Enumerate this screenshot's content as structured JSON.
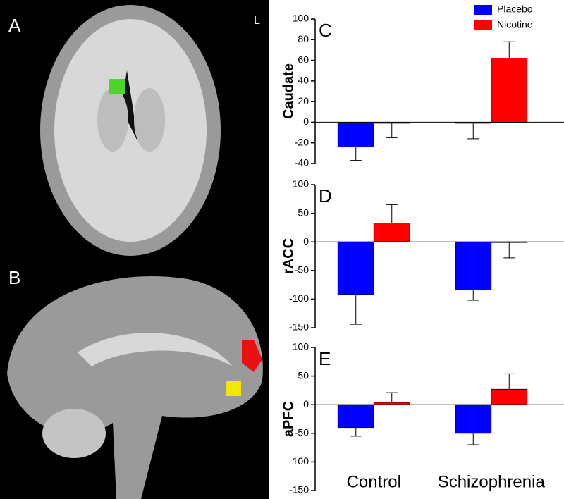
{
  "panel_labels": [
    "A",
    "B"
  ],
  "orientation_label": "L",
  "chart_data": [
    {
      "type": "bar",
      "panel": "C",
      "y_label": "Caudate",
      "ylim": [
        -40,
        100
      ],
      "yticks": [
        -40,
        -20,
        0,
        20,
        40,
        60,
        80,
        100
      ],
      "series": [
        {
          "name": "Placebo",
          "color": "#0000ff",
          "values": [
            -24,
            -1
          ],
          "errors": [
            13,
            15
          ]
        },
        {
          "name": "Nicotine",
          "color": "#ff0000",
          "values": [
            -1,
            62
          ],
          "errors": [
            14,
            16
          ]
        }
      ]
    },
    {
      "type": "bar",
      "panel": "D",
      "y_label": "rACC",
      "ylim": [
        -150,
        100
      ],
      "yticks": [
        -150,
        -100,
        -50,
        0,
        50,
        100
      ],
      "series": [
        {
          "color": "#0000ff",
          "values": [
            -92,
            -84
          ],
          "errors": [
            52,
            18
          ]
        },
        {
          "color": "#ff0000",
          "values": [
            33,
            -1
          ],
          "errors": [
            32,
            27
          ]
        }
      ]
    },
    {
      "type": "bar",
      "panel": "E",
      "y_label": "aPFC",
      "ylim": [
        -150,
        100
      ],
      "yticks": [
        -150,
        -100,
        -50,
        0,
        50,
        100
      ],
      "categories": [
        "Control",
        "Schizophrenia"
      ],
      "series": [
        {
          "color": "#0000ff",
          "values": [
            -40,
            -50
          ],
          "errors": [
            15,
            20
          ]
        },
        {
          "color": "#ff0000",
          "values": [
            4,
            27
          ],
          "errors": [
            17,
            27
          ]
        }
      ]
    }
  ]
}
